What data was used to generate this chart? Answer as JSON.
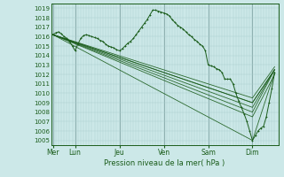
{
  "bg_color": "#cce8e8",
  "grid_color_minor": "#aacccc",
  "grid_color_major": "#88aaaa",
  "line_color": "#1a5c1a",
  "marker_color": "#1a5c1a",
  "title": "Pression niveau de la mer( hPa )",
  "xlabel_days": [
    "Mer",
    "Lun",
    "Jeu",
    "Ven",
    "Sam",
    "Dim"
  ],
  "day_positions": [
    0,
    24,
    72,
    120,
    168,
    216
  ],
  "ylim": [
    1004.5,
    1019.5
  ],
  "yticks": [
    1005,
    1006,
    1007,
    1008,
    1009,
    1010,
    1011,
    1012,
    1013,
    1014,
    1015,
    1016,
    1017,
    1018,
    1019
  ],
  "xlim": [
    -2,
    244
  ],
  "series_straight": [
    [
      [
        0,
        216,
        240
      ],
      [
        1016.2,
        1005.0,
        1012.2
      ]
    ],
    [
      [
        0,
        216,
        240
      ],
      [
        1016.2,
        1007.5,
        1012.0
      ]
    ],
    [
      [
        0,
        216,
        240
      ],
      [
        1016.2,
        1008.0,
        1012.5
      ]
    ],
    [
      [
        0,
        216,
        240
      ],
      [
        1016.2,
        1008.5,
        1012.5
      ]
    ],
    [
      [
        0,
        216,
        240
      ],
      [
        1016.2,
        1009.0,
        1012.5
      ]
    ],
    [
      [
        0,
        216,
        240
      ],
      [
        1016.2,
        1009.5,
        1012.8
      ]
    ],
    [
      [
        0,
        216,
        240
      ],
      [
        1016.2,
        1009.0,
        1012.5
      ]
    ]
  ],
  "detail_series_x": [
    0,
    3,
    6,
    9,
    12,
    15,
    18,
    21,
    24,
    27,
    30,
    33,
    36,
    39,
    42,
    45,
    48,
    51,
    54,
    57,
    60,
    63,
    66,
    69,
    72,
    75,
    78,
    81,
    84,
    87,
    90,
    93,
    96,
    99,
    102,
    105,
    108,
    111,
    114,
    117,
    120,
    123,
    126,
    129,
    132,
    135,
    138,
    141,
    144,
    147,
    150,
    153,
    156,
    159,
    162,
    165,
    168,
    171,
    174,
    177,
    180,
    183,
    186,
    189,
    192,
    195,
    198,
    201,
    204,
    207,
    210,
    213,
    216,
    219,
    222,
    225,
    228,
    231,
    234,
    237,
    240
  ],
  "detail_series_y": [
    1016.2,
    1016.4,
    1016.5,
    1016.3,
    1016.0,
    1015.8,
    1015.5,
    1015.0,
    1014.5,
    1015.2,
    1015.8,
    1016.1,
    1016.2,
    1016.1,
    1016.0,
    1015.9,
    1015.8,
    1015.6,
    1015.5,
    1015.2,
    1015.0,
    1014.9,
    1014.8,
    1014.6,
    1014.5,
    1014.7,
    1015.0,
    1015.3,
    1015.5,
    1015.8,
    1016.2,
    1016.6,
    1017.0,
    1017.4,
    1017.8,
    1018.3,
    1018.8,
    1018.8,
    1018.7,
    1018.6,
    1018.5,
    1018.4,
    1018.2,
    1017.8,
    1017.5,
    1017.2,
    1017.0,
    1016.8,
    1016.5,
    1016.2,
    1016.0,
    1015.7,
    1015.5,
    1015.2,
    1015.0,
    1014.5,
    1013.0,
    1012.9,
    1012.8,
    1012.6,
    1012.5,
    1012.2,
    1011.5,
    1011.5,
    1011.5,
    1011.0,
    1010.0,
    1009.2,
    1008.5,
    1007.8,
    1007.0,
    1006.0,
    1005.0,
    1005.5,
    1006.0,
    1006.3,
    1006.5,
    1007.5,
    1009.0,
    1010.5,
    1012.2
  ]
}
